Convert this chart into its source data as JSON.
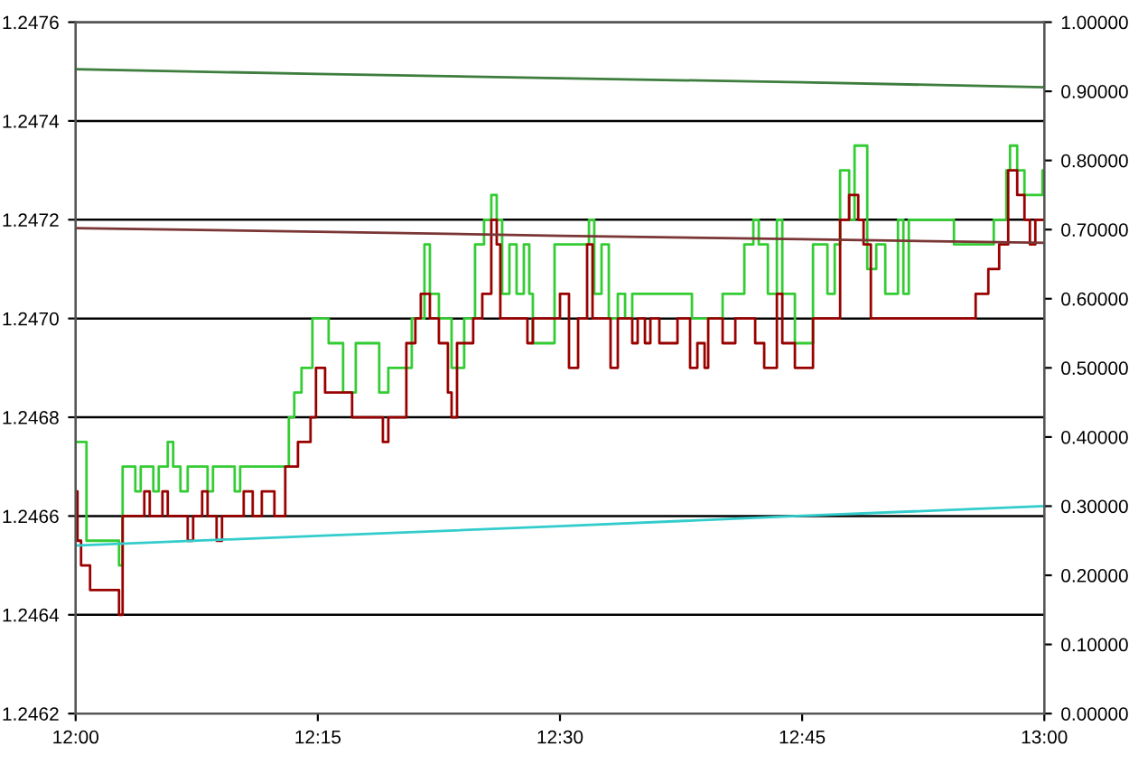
{
  "chart_data": {
    "type": "step",
    "xlim": [
      12,
      13
    ],
    "xticks": [
      {
        "value": 12,
        "label": "12:00"
      },
      {
        "value": 12.25,
        "label": "12:15"
      },
      {
        "value": 12.5,
        "label": "12:30"
      },
      {
        "value": 12.75,
        "label": "12:45"
      },
      {
        "value": 13,
        "label": "13:00"
      }
    ],
    "ylim": [
      1.2462,
      1.2476
    ],
    "yticks": [
      1.2462,
      1.2464,
      1.2466,
      1.2468,
      {
        "value": 1.247,
        "label": "1.2470"
      },
      1.2472,
      1.2474,
      1.2476
    ],
    "y2lim": [
      0,
      1
    ],
    "y2ticks": [
      {
        "value": 0,
        "label": "0.00000"
      },
      {
        "value": 0.1,
        "label": "0.10000"
      },
      {
        "value": 0.2,
        "label": "0.20000"
      },
      {
        "value": 0.3,
        "label": "0.30000"
      },
      {
        "value": 0.4,
        "label": "0.40000"
      },
      {
        "value": 0.5,
        "label": "0.50000"
      },
      {
        "value": 0.6,
        "label": "0.60000"
      },
      {
        "value": 0.7,
        "label": "0.70000"
      },
      {
        "value": 0.8,
        "label": "0.80000"
      },
      {
        "value": 0.9,
        "label": "0.90000"
      },
      {
        "value": 1,
        "label": "1.00000"
      }
    ],
    "grid": "y",
    "series": [
      {
        "color": "#33cc33",
        "x": [
          12.0,
          12.0112,
          12.0392,
          12.0448,
          12.0485,
          12.0616,
          12.0672,
          12.0802,
          12.0858,
          12.0951,
          12.1007,
          12.1082,
          12.1157,
          12.1362,
          12.1418,
          12.1642,
          12.1698,
          12.2108,
          12.2201,
          12.2257,
          12.2332,
          12.2444,
          12.2575,
          12.2612,
          12.2761,
          12.2892,
          12.3041,
          12.3134,
          12.3228,
          12.3414,
          12.347,
          12.3601,
          12.3657,
          12.375,
          12.3881,
          12.4011,
          12.4123,
          12.4216,
          12.4291,
          12.4347,
          12.4403,
          12.4478,
          12.4552,
          12.4627,
          12.4683,
          12.472,
          12.4813,
          12.4944,
          12.5243,
          12.5299,
          12.5354,
          12.5429,
          12.5504,
          12.5597,
          12.5672,
          12.5746,
          12.6306,
          12.6362,
          12.6679,
          12.6903,
          12.6996,
          12.7052,
          12.7146,
          12.7239,
          12.7295,
          12.7425,
          12.7556,
          12.7612,
          12.7761,
          12.7836,
          12.7892,
          12.7985,
          12.8041,
          12.8116,
          12.8172,
          12.8265,
          12.8358,
          12.8489,
          12.8545,
          12.8601,
          12.9049,
          12.9067,
          12.9347,
          12.9478,
          12.9608,
          12.9646,
          12.972,
          12.9795,
          12.9944,
          12.9981,
          13.0
        ],
        "values": [
          1.24675,
          1.24655,
          1.24655,
          1.2465,
          1.2467,
          1.24665,
          1.2467,
          1.24665,
          1.2467,
          1.24675,
          1.2467,
          1.24665,
          1.2467,
          1.24665,
          1.2467,
          1.24665,
          1.2467,
          1.2467,
          1.2468,
          1.24685,
          1.2469,
          1.247,
          1.247,
          1.24695,
          1.24685,
          1.24695,
          1.24695,
          1.24685,
          1.2469,
          1.2469,
          1.247,
          1.24715,
          1.24705,
          1.247,
          1.2469,
          1.247,
          1.24715,
          1.2472,
          1.24725,
          1.2472,
          1.24705,
          1.24715,
          1.24705,
          1.24715,
          1.24705,
          1.24695,
          1.24695,
          1.24715,
          1.24715,
          1.2472,
          1.24705,
          1.24715,
          1.247,
          1.24705,
          1.247,
          1.24705,
          1.24705,
          1.247,
          1.24705,
          1.24715,
          1.2472,
          1.24715,
          1.24705,
          1.2472,
          1.24705,
          1.24695,
          1.24695,
          1.24715,
          1.24705,
          1.24715,
          1.2473,
          1.2472,
          1.24735,
          1.24735,
          1.2471,
          1.24715,
          1.24705,
          1.2472,
          1.24705,
          1.2472,
          1.2472,
          1.24715,
          1.24715,
          1.2472,
          1.2473,
          1.24735,
          1.2473,
          1.24725,
          1.24725,
          1.2473,
          1.2473
        ]
      },
      {
        "color": "#990000",
        "x": [
          12.0,
          12.0019,
          12.0056,
          12.0149,
          12.0392,
          12.0448,
          12.0485,
          12.0709,
          12.0765,
          12.0896,
          12.0951,
          12.1157,
          12.1213,
          12.1306,
          12.1362,
          12.1455,
          12.1511,
          12.1735,
          12.1828,
          12.1922,
          12.2052,
          12.2164,
          12.2295,
          12.2425,
          12.2481,
          12.2575,
          12.2761,
          12.2854,
          12.3041,
          12.3172,
          12.3228,
          12.3321,
          12.3414,
          12.3507,
          12.3563,
          12.3657,
          12.375,
          12.3843,
          12.3881,
          12.3937,
          12.4104,
          12.4198,
          12.4291,
          12.4347,
          12.4384,
          12.4627,
          12.4664,
          12.472,
          12.4963,
          12.5,
          12.5093,
          12.5187,
          12.528,
          12.5336,
          12.5522,
          12.5597,
          12.5746,
          12.5802,
          12.5877,
          12.5933,
          12.6026,
          12.6213,
          12.6343,
          12.6418,
          12.6493,
          12.653,
          12.6679,
          12.681,
          12.7015,
          12.7108,
          12.7239,
          12.7295,
          12.7425,
          12.7612,
          12.7892,
          12.7985,
          12.8079,
          12.8134,
          12.8209,
          12.9067,
          12.9291,
          12.9422,
          12.9534,
          12.9627,
          12.972,
          12.9795,
          12.9851,
          12.9907,
          13.0
        ],
        "values": [
          1.24665,
          1.24655,
          1.2465,
          1.24645,
          1.24645,
          1.2464,
          1.2466,
          1.24665,
          1.2466,
          1.24665,
          1.2466,
          1.24655,
          1.2466,
          1.24665,
          1.2466,
          1.24655,
          1.2466,
          1.24665,
          1.2466,
          1.24665,
          1.2466,
          1.2467,
          1.24675,
          1.2468,
          1.2469,
          1.24685,
          1.24685,
          1.2468,
          1.2468,
          1.24675,
          1.2468,
          1.2468,
          1.24695,
          1.247,
          1.24705,
          1.247,
          1.24695,
          1.24685,
          1.2468,
          1.24695,
          1.247,
          1.24705,
          1.2472,
          1.24715,
          1.247,
          1.247,
          1.24695,
          1.247,
          1.247,
          1.24705,
          1.2469,
          1.247,
          1.24715,
          1.247,
          1.2469,
          1.247,
          1.24695,
          1.247,
          1.24695,
          1.247,
          1.24695,
          1.247,
          1.2469,
          1.24695,
          1.2469,
          1.247,
          1.24695,
          1.247,
          1.24695,
          1.2469,
          1.24705,
          1.24695,
          1.2469,
          1.247,
          1.2472,
          1.24725,
          1.2472,
          1.24715,
          1.247,
          1.247,
          1.24705,
          1.2471,
          1.24715,
          1.2473,
          1.24725,
          1.2472,
          1.24715,
          1.2472,
          1.2472
        ]
      },
      {
        "type": "line",
        "axis": "y2",
        "color": "#3d7d3d",
        "x": [
          12.0,
          12.25,
          12.5,
          12.75,
          13.0
        ],
        "values": [
          0.932,
          0.925,
          0.919,
          0.913,
          0.906
        ]
      },
      {
        "type": "line",
        "axis": "y2",
        "color": "#7a3535",
        "x": [
          12.0,
          12.25,
          12.5,
          12.75,
          13.0
        ],
        "values": [
          0.702,
          0.697,
          0.691,
          0.686,
          0.681
        ]
      },
      {
        "type": "line",
        "axis": "y2",
        "color": "#33cccc",
        "x": [
          12.0,
          12.25,
          12.5,
          12.75,
          13.0
        ],
        "values": [
          0.243,
          0.257,
          0.271,
          0.286,
          0.3
        ]
      }
    ]
  }
}
